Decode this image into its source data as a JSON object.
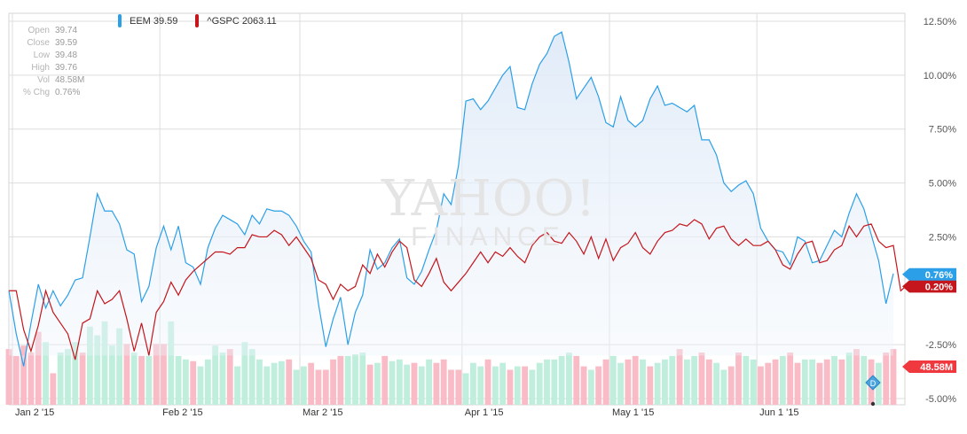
{
  "ohlc": [
    {
      "label": "Open",
      "value": "39.74"
    },
    {
      "label": "Close",
      "value": "39.59"
    },
    {
      "label": "Low",
      "value": "39.48"
    },
    {
      "label": "High",
      "value": "39.76"
    },
    {
      "label": "Vol",
      "value": "48.58M"
    },
    {
      "label": "% Chg",
      "value": "0.76%"
    }
  ],
  "legend": [
    {
      "text": "EEM 39.59",
      "color": "#2b9fe8"
    },
    {
      "text": "^GSPC 2063.11",
      "color": "#c4161c"
    }
  ],
  "watermark": {
    "line1": "YAHOO!",
    "line2": "FINANCE"
  },
  "badges": [
    {
      "text": "0.76%",
      "color": "#2b9fe8",
      "value": 0.76
    },
    {
      "text": "0.20%",
      "color": "#c4161c",
      "value": 0.2
    }
  ],
  "volume_badge": {
    "text": "48.58M",
    "color": "#f0393f"
  },
  "colors": {
    "eem": "#2b9fe8",
    "gspc": "#c4161c",
    "area": "#e7f0fa",
    "vol_up": "#bfeedd",
    "vol_down": "#f9bcc7",
    "grid": "#dddddd"
  },
  "chart_data": {
    "type": "line",
    "title": "",
    "ylim": [
      -5.0,
      12.5
    ],
    "yticks": [
      "12.50%",
      "10.00%",
      "7.50%",
      "5.00%",
      "2.50%",
      "-2.50%",
      "-5.00%"
    ],
    "ytick_values": [
      12.5,
      10.0,
      7.5,
      5.0,
      2.5,
      -2.5,
      -5.0
    ],
    "grid": true,
    "xticks": [
      {
        "label": "Jan 2 '15",
        "index": 0
      },
      {
        "label": "Feb 2 '15",
        "index": 20
      },
      {
        "label": "Mar 2 '15",
        "index": 39
      },
      {
        "label": "Apr 1 '15",
        "index": 61
      },
      {
        "label": "May 1 '15",
        "index": 81
      },
      {
        "label": "Jun 1 '15",
        "index": 101
      }
    ],
    "series": [
      {
        "name": "EEM",
        "values": [
          0.0,
          -2.0,
          -3.5,
          -1.5,
          0.3,
          -0.8,
          0.0,
          -0.7,
          -0.2,
          0.5,
          0.6,
          2.5,
          4.5,
          3.7,
          3.7,
          3.1,
          1.9,
          1.7,
          -0.5,
          0.2,
          2.0,
          3.0,
          1.9,
          3.0,
          1.3,
          1.1,
          0.3,
          2.0,
          2.9,
          3.5,
          3.3,
          3.1,
          2.6,
          3.5,
          3.1,
          3.8,
          3.7,
          3.7,
          3.5,
          3.0,
          2.3,
          1.8,
          -0.6,
          -2.6,
          -1.3,
          -0.3,
          -2.5,
          -1.0,
          -0.2,
          1.9,
          1.0,
          1.3,
          2.0,
          2.4,
          0.6,
          0.3,
          0.9,
          1.9,
          2.8,
          4.5,
          4.0,
          5.8,
          8.8,
          8.9,
          8.4,
          8.8,
          9.4,
          10.0,
          10.4,
          8.5,
          8.4,
          9.6,
          10.5,
          11.0,
          11.8,
          12.0,
          10.6,
          8.9,
          9.4,
          9.9,
          9.0,
          7.8,
          7.6,
          9.0,
          7.9,
          7.6,
          7.9,
          8.9,
          9.5,
          8.6,
          8.7,
          8.5,
          8.3,
          8.6,
          7.0,
          7.0,
          6.3,
          5.0,
          4.6,
          4.9,
          5.1,
          4.5,
          2.9,
          2.3,
          1.9,
          1.8,
          1.2,
          2.5,
          2.3,
          1.3,
          1.4,
          2.1,
          2.8,
          2.5,
          3.6,
          4.5,
          3.8,
          2.6,
          1.4,
          -0.6,
          0.8
        ]
      },
      {
        "name": "^GSPC",
        "values": [
          0.0,
          0.0,
          -1.8,
          -2.8,
          -1.6,
          0.0,
          -1.0,
          -1.5,
          -2.0,
          -3.2,
          -1.5,
          -1.3,
          0.0,
          -0.6,
          -0.4,
          0.0,
          -1.3,
          -2.8,
          -1.5,
          -3.0,
          -1.0,
          -0.5,
          0.4,
          -0.2,
          0.5,
          0.9,
          1.2,
          1.5,
          1.8,
          1.8,
          1.7,
          2.0,
          2.0,
          2.6,
          2.5,
          2.5,
          2.8,
          2.6,
          2.1,
          2.5,
          2.0,
          1.5,
          0.5,
          0.3,
          -0.4,
          0.3,
          0.0,
          0.2,
          1.2,
          0.8,
          1.7,
          1.1,
          1.8,
          2.3,
          2.0,
          0.5,
          0.2,
          0.8,
          1.5,
          0.4,
          0.0,
          0.4,
          0.8,
          1.3,
          1.8,
          1.3,
          1.8,
          1.6,
          2.0,
          1.6,
          1.3,
          2.1,
          2.5,
          2.7,
          2.3,
          2.2,
          2.7,
          2.3,
          1.7,
          2.5,
          1.5,
          2.4,
          1.4,
          2.0,
          2.2,
          2.7,
          2.0,
          1.7,
          2.3,
          2.7,
          2.8,
          3.1,
          3.0,
          3.3,
          3.1,
          2.4,
          2.9,
          3.0,
          2.4,
          2.1,
          2.4,
          2.1,
          2.1,
          2.3,
          1.9,
          1.2,
          1.0,
          1.7,
          2.2,
          2.3,
          1.3,
          1.4,
          1.9,
          2.1,
          3.0,
          2.5,
          3.0,
          3.1,
          2.3,
          2.0,
          2.1,
          0.0,
          0.3
        ]
      }
    ],
    "volume": {
      "values_millions": [
        42,
        38,
        44,
        40,
        52,
        46,
        28,
        40,
        42,
        46,
        40,
        55,
        50,
        58,
        44,
        54,
        45,
        40,
        38,
        38,
        45,
        45,
        58,
        38,
        36,
        35,
        32,
        36,
        44,
        40,
        42,
        32,
        46,
        42,
        36,
        32,
        34,
        35,
        36,
        30,
        32,
        34,
        30,
        30,
        36,
        38,
        38,
        39,
        40,
        33,
        34,
        38,
        35,
        36,
        33,
        34,
        32,
        36,
        34,
        36,
        30,
        30,
        28,
        34,
        32,
        36,
        32,
        34,
        30,
        32,
        32,
        30,
        34,
        36,
        36,
        38,
        40,
        38,
        32,
        30,
        32,
        36,
        38,
        34,
        36,
        38,
        36,
        32,
        34,
        36,
        38,
        42,
        36,
        38,
        40,
        36,
        34,
        30,
        32,
        40,
        38,
        36,
        32,
        34,
        36,
        38,
        40,
        34,
        36,
        36,
        34,
        36,
        38,
        36,
        40,
        42,
        38,
        36,
        34,
        40,
        42
      ],
      "direction": [
        "down",
        "down",
        "down",
        "down",
        "down",
        "up",
        "down",
        "up",
        "up",
        "up",
        "down",
        "up",
        "up",
        "up",
        "up",
        "up",
        "down",
        "up",
        "down",
        "up",
        "down",
        "down",
        "up",
        "up",
        "up",
        "down",
        "up",
        "up",
        "up",
        "up",
        "down",
        "up",
        "up",
        "up",
        "up",
        "up",
        "up",
        "up",
        "down",
        "up",
        "up",
        "down",
        "down",
        "down",
        "down",
        "down",
        "up",
        "up",
        "up",
        "down",
        "up",
        "down",
        "up",
        "up",
        "up",
        "down",
        "up",
        "up",
        "down",
        "down",
        "down",
        "down",
        "up",
        "up",
        "up",
        "down",
        "up",
        "up",
        "down",
        "up",
        "down",
        "up",
        "up",
        "up",
        "up",
        "up",
        "up",
        "down",
        "down",
        "up",
        "down",
        "down",
        "up",
        "up",
        "down",
        "down",
        "up",
        "down",
        "up",
        "up",
        "up",
        "down",
        "up",
        "up",
        "down",
        "down",
        "up",
        "up",
        "down",
        "down",
        "up",
        "up",
        "down",
        "down",
        "down",
        "up",
        "down",
        "down",
        "up",
        "up",
        "down",
        "down",
        "up",
        "down",
        "up",
        "down",
        "up",
        "down",
        "up",
        "down",
        "down"
      ]
    }
  }
}
